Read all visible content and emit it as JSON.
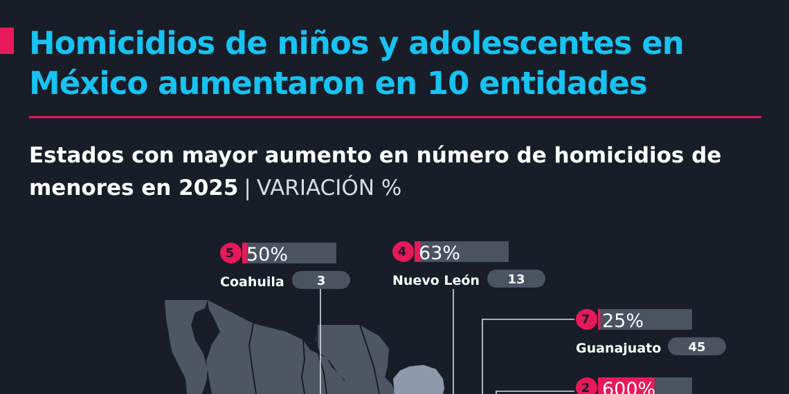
{
  "header": {
    "title": "Homicidios de niños y adolescentes en México aumentaron en 10 entidades",
    "subtitle_main": "Estados con mayor aumento en número de homicidios de menores en 2025",
    "subtitle_separator": "|",
    "subtitle_unit": "VARIACIÓN %"
  },
  "colors": {
    "background": "#181d28",
    "title": "#17c3f2",
    "accent": "#e8195a",
    "bar_track": "#4b5260",
    "map_fill": "#4f5663",
    "map_highlight": "#8e99ab"
  },
  "chart_data": {
    "type": "bar",
    "title": "Estados con mayor aumento en número de homicidios de menores en 2025",
    "unit": "VARIACIÓN %",
    "items": [
      {
        "rank": "5",
        "state": "Coahuila",
        "pct_label": "50%",
        "variation_pct": 50,
        "count": "3"
      },
      {
        "rank": "4",
        "state": "Nuevo León",
        "pct_label": "63%",
        "variation_pct": 63,
        "count": "13"
      },
      {
        "rank": "7",
        "state": "Guanajuato",
        "pct_label": "25%",
        "variation_pct": 25,
        "count": "45"
      },
      {
        "rank": "2",
        "state": "",
        "pct_label": "600%",
        "variation_pct": 600,
        "count": ""
      }
    ],
    "bar_max_pct": 1000
  }
}
